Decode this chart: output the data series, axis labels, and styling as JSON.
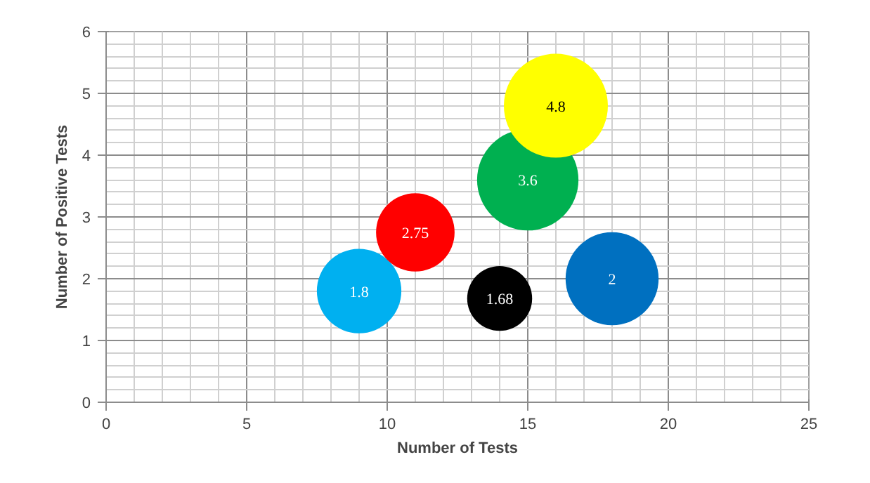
{
  "chart_data": {
    "type": "bubble",
    "xlabel": "Number of Tests",
    "ylabel": "Number of Positive Tests",
    "x": [
      9,
      11,
      14,
      15,
      16,
      18
    ],
    "values": [
      1.8,
      2.75,
      1.68,
      3.6,
      4.8,
      2
    ],
    "sizes": [
      0.66,
      0.57,
      0.39,
      0.95,
      1,
      0.8
    ],
    "colors": [
      "#00b0f0",
      "#ff0000",
      "#000000",
      "#00b050",
      "#ffff00",
      "#0070c0"
    ],
    "data_labels": true,
    "xlim": [
      0,
      25
    ],
    "ylim": [
      0,
      6
    ],
    "xticks": [
      0,
      5,
      10,
      15,
      20,
      25
    ],
    "yticks": [
      0,
      1,
      2,
      3,
      4,
      5,
      6
    ],
    "grid": true
  }
}
